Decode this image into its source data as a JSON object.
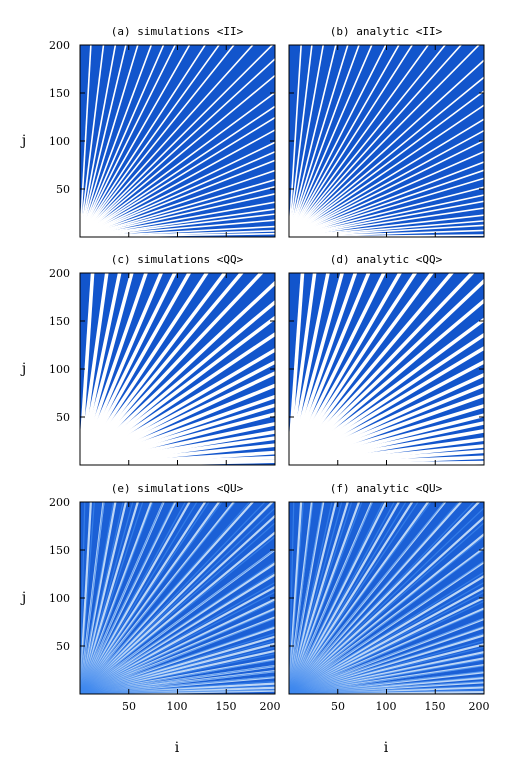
{
  "chart_data": [
    {
      "type": "heatmap",
      "title": "(a) simulations <II>",
      "pattern": "II",
      "ylabel": "j",
      "xlabel": "",
      "xlim": [
        0,
        200
      ],
      "ylim": [
        0,
        200
      ]
    },
    {
      "type": "heatmap",
      "title": "(b) analytic <II>",
      "pattern": "II",
      "ylabel": "",
      "xlabel": "",
      "xlim": [
        0,
        200
      ],
      "ylim": [
        0,
        200
      ]
    },
    {
      "type": "heatmap",
      "title": "(c) simulations <QQ>",
      "pattern": "QQ",
      "ylabel": "j",
      "xlabel": "",
      "xlim": [
        0,
        200
      ],
      "ylim": [
        0,
        200
      ]
    },
    {
      "type": "heatmap",
      "title": "(d) analytic <QQ>",
      "pattern": "QQ",
      "ylabel": "",
      "xlabel": "",
      "xlim": [
        0,
        200
      ],
      "ylim": [
        0,
        200
      ]
    },
    {
      "type": "heatmap",
      "title": "(e) simulations <QU>",
      "pattern": "QU",
      "ylabel": "j",
      "xlabel": "i",
      "xlim": [
        0,
        200
      ],
      "ylim": [
        0,
        200
      ]
    },
    {
      "type": "heatmap",
      "title": "(f) analytic <QU>",
      "pattern": "QU",
      "ylabel": "",
      "xlabel": "i",
      "xlim": [
        0,
        200
      ],
      "ylim": [
        0,
        200
      ]
    }
  ],
  "axes": {
    "xticks": [
      "50",
      "100",
      "150",
      "200"
    ],
    "yticks": [
      "50",
      "100",
      "150",
      "200"
    ]
  },
  "colors": {
    "background_blue": "#1255cc",
    "mid_blue": "#3f88ee",
    "stripe_white": "#ffffff",
    "frame": "#000000"
  }
}
